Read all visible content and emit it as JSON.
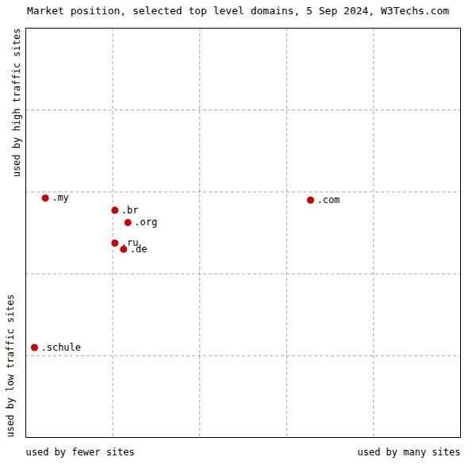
{
  "chart_data": {
    "type": "scatter",
    "title": "Market position, selected top level domains, 5 Sep 2024, W3Techs.com",
    "xlabel_left": "used by fewer sites",
    "xlabel_right": "used by many sites",
    "ylabel_top": "used by high traffic sites",
    "ylabel_bottom": "used by low traffic sites",
    "labels": [
      ".my",
      ".br",
      ".org",
      ".ru",
      ".de",
      ".com",
      ".schule"
    ],
    "x": [
      0.45,
      2.05,
      2.35,
      2.05,
      2.25,
      6.55,
      0.2
    ],
    "y": [
      5.85,
      5.55,
      5.25,
      4.75,
      4.6,
      5.8,
      2.2
    ],
    "color": "#cc0000",
    "xlim": [
      0,
      10
    ],
    "ylim": [
      0,
      10
    ],
    "xticks": [
      2,
      4,
      6,
      8
    ],
    "yticks": [
      2,
      4,
      6,
      8
    ],
    "grid": true,
    "tick_labels": false
  }
}
